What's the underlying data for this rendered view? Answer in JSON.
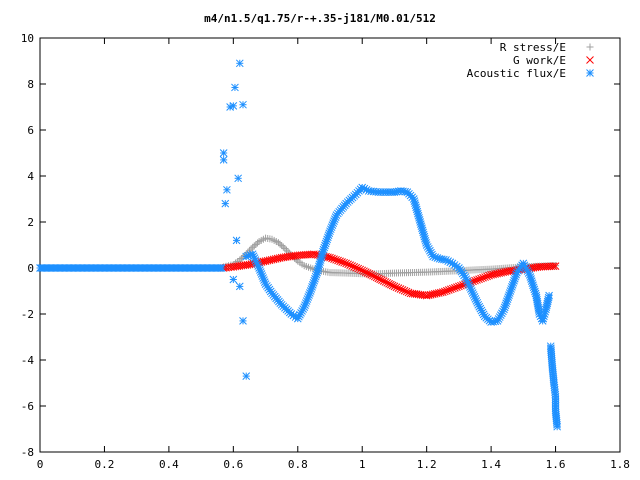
{
  "chart_data": {
    "type": "scatter",
    "title": "m4/n1.5/q1.75/r-+.35-j181/M0.01/512",
    "xlabel": "",
    "ylabel": "",
    "xlim": [
      0,
      1.8
    ],
    "ylim": [
      -8,
      10
    ],
    "x_ticks": [
      "0",
      "0.2",
      "0.4",
      "0.6",
      "0.8",
      "1",
      "1.2",
      "1.4",
      "1.6",
      "1.8"
    ],
    "y_ticks": [
      "-8",
      "-6",
      "-4",
      "-2",
      "0",
      "2",
      "4",
      "6",
      "8",
      "10"
    ],
    "grid": false,
    "legend_position": "top-right",
    "series": [
      {
        "name": "R stress/E",
        "marker": "plus",
        "color": "#a0a0a0",
        "points": [
          [
            0.57,
            0.05
          ],
          [
            0.6,
            0.15
          ],
          [
            0.62,
            0.35
          ],
          [
            0.64,
            0.6
          ],
          [
            0.66,
            0.9
          ],
          [
            0.68,
            1.15
          ],
          [
            0.7,
            1.3
          ],
          [
            0.72,
            1.25
          ],
          [
            0.74,
            1.1
          ],
          [
            0.76,
            0.85
          ],
          [
            0.78,
            0.55
          ],
          [
            0.8,
            0.3
          ],
          [
            0.82,
            0.1
          ],
          [
            0.84,
            0.0
          ],
          [
            0.86,
            -0.1
          ],
          [
            0.88,
            -0.15
          ],
          [
            0.9,
            -0.2
          ],
          [
            0.95,
            -0.22
          ],
          [
            1.0,
            -0.25
          ],
          [
            1.05,
            -0.25
          ],
          [
            1.1,
            -0.22
          ],
          [
            1.15,
            -0.2
          ],
          [
            1.2,
            -0.18
          ],
          [
            1.25,
            -0.15
          ],
          [
            1.3,
            -0.12
          ],
          [
            1.35,
            -0.08
          ],
          [
            1.4,
            -0.05
          ],
          [
            1.45,
            0.0
          ],
          [
            1.5,
            0.05
          ],
          [
            1.55,
            0.08
          ],
          [
            1.6,
            0.1
          ]
        ]
      },
      {
        "name": "G work/E",
        "marker": "cross",
        "color": "#ff0000",
        "points": [
          [
            0.57,
            0.0
          ],
          [
            0.6,
            0.05
          ],
          [
            0.65,
            0.15
          ],
          [
            0.7,
            0.3
          ],
          [
            0.75,
            0.45
          ],
          [
            0.8,
            0.55
          ],
          [
            0.85,
            0.6
          ],
          [
            0.9,
            0.45
          ],
          [
            0.95,
            0.2
          ],
          [
            1.0,
            -0.1
          ],
          [
            1.05,
            -0.45
          ],
          [
            1.1,
            -0.8
          ],
          [
            1.15,
            -1.1
          ],
          [
            1.2,
            -1.2
          ],
          [
            1.25,
            -1.05
          ],
          [
            1.3,
            -0.8
          ],
          [
            1.35,
            -0.55
          ],
          [
            1.4,
            -0.3
          ],
          [
            1.45,
            -0.15
          ],
          [
            1.5,
            -0.05
          ],
          [
            1.55,
            0.05
          ],
          [
            1.6,
            0.08
          ]
        ]
      },
      {
        "name": "Acoustic flux/E",
        "marker": "star",
        "color": "#1e90ff",
        "points": [
          [
            0.0,
            0.0
          ],
          [
            0.1,
            0.0
          ],
          [
            0.2,
            0.0
          ],
          [
            0.3,
            0.0
          ],
          [
            0.4,
            0.0
          ],
          [
            0.5,
            0.0
          ],
          [
            0.56,
            0.0
          ],
          [
            0.57,
            4.7
          ],
          [
            0.57,
            5.0
          ],
          [
            0.575,
            2.8
          ],
          [
            0.58,
            3.4
          ],
          [
            0.59,
            7.0
          ],
          [
            0.6,
            7.05
          ],
          [
            0.605,
            7.85
          ],
          [
            0.61,
            1.2
          ],
          [
            0.615,
            3.9
          ],
          [
            0.62,
            8.9
          ],
          [
            0.63,
            7.1
          ],
          [
            0.63,
            -2.3
          ],
          [
            0.64,
            -4.7
          ],
          [
            0.6,
            -0.5
          ],
          [
            0.62,
            -0.8
          ],
          [
            0.64,
            0.5
          ],
          [
            0.66,
            0.6
          ],
          [
            0.68,
            0.0
          ],
          [
            0.7,
            -0.7
          ],
          [
            0.72,
            -1.1
          ],
          [
            0.75,
            -1.6
          ],
          [
            0.78,
            -2.0
          ],
          [
            0.8,
            -2.2
          ],
          [
            0.82,
            -1.7
          ],
          [
            0.84,
            -1.0
          ],
          [
            0.86,
            -0.2
          ],
          [
            0.88,
            0.8
          ],
          [
            0.9,
            1.6
          ],
          [
            0.92,
            2.3
          ],
          [
            0.95,
            2.8
          ],
          [
            0.98,
            3.2
          ],
          [
            1.0,
            3.5
          ],
          [
            1.02,
            3.35
          ],
          [
            1.05,
            3.3
          ],
          [
            1.08,
            3.3
          ],
          [
            1.1,
            3.3
          ],
          [
            1.12,
            3.35
          ],
          [
            1.14,
            3.3
          ],
          [
            1.16,
            3.0
          ],
          [
            1.18,
            2.0
          ],
          [
            1.2,
            1.0
          ],
          [
            1.22,
            0.5
          ],
          [
            1.24,
            0.4
          ],
          [
            1.26,
            0.35
          ],
          [
            1.28,
            0.2
          ],
          [
            1.3,
            0.0
          ],
          [
            1.32,
            -0.4
          ],
          [
            1.34,
            -1.0
          ],
          [
            1.36,
            -1.6
          ],
          [
            1.38,
            -2.1
          ],
          [
            1.4,
            -2.35
          ],
          [
            1.42,
            -2.3
          ],
          [
            1.44,
            -1.8
          ],
          [
            1.46,
            -1.0
          ],
          [
            1.48,
            -0.2
          ],
          [
            1.5,
            0.2
          ],
          [
            1.52,
            -0.3
          ],
          [
            1.54,
            -1.2
          ],
          [
            1.55,
            -2.0
          ],
          [
            1.56,
            -2.3
          ],
          [
            1.57,
            -1.8
          ],
          [
            1.58,
            -1.2
          ],
          [
            1.585,
            -3.4
          ],
          [
            1.59,
            -4.3
          ],
          [
            1.595,
            -5.0
          ],
          [
            1.6,
            -5.6
          ],
          [
            1.6,
            -6.2
          ],
          [
            1.605,
            -6.9
          ]
        ]
      }
    ]
  }
}
